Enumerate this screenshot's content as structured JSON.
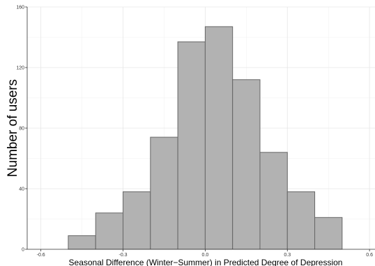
{
  "chart_data": {
    "type": "bar",
    "xlabel": "Seasonal Difference (Winter−Summer) in Predicted Degree of Depression",
    "ylabel": "Number of users",
    "xlim": [
      -0.65,
      0.62
    ],
    "ylim": [
      0,
      160
    ],
    "xticks": [
      -0.6,
      -0.3,
      0.0,
      0.3,
      0.6
    ],
    "xtick_labels": [
      "-0.6",
      "-0.3",
      "0.0",
      "0.3",
      "0.6"
    ],
    "yticks": [
      0,
      40,
      80,
      120,
      160
    ],
    "ytick_labels": [
      "0",
      "40",
      "80",
      "120",
      "160"
    ],
    "grid": true,
    "bins": [
      {
        "x0": -0.5,
        "x1": -0.4,
        "value": 9
      },
      {
        "x0": -0.4,
        "x1": -0.3,
        "value": 24
      },
      {
        "x0": -0.3,
        "x1": -0.2,
        "value": 38
      },
      {
        "x0": -0.2,
        "x1": -0.1,
        "value": 74
      },
      {
        "x0": -0.1,
        "x1": 0.0,
        "value": 137
      },
      {
        "x0": 0.0,
        "x1": 0.1,
        "value": 147
      },
      {
        "x0": 0.1,
        "x1": 0.2,
        "value": 112
      },
      {
        "x0": 0.2,
        "x1": 0.3,
        "value": 64
      },
      {
        "x0": 0.3,
        "x1": 0.4,
        "value": 38
      },
      {
        "x0": 0.4,
        "x1": 0.5,
        "value": 21
      }
    ]
  }
}
